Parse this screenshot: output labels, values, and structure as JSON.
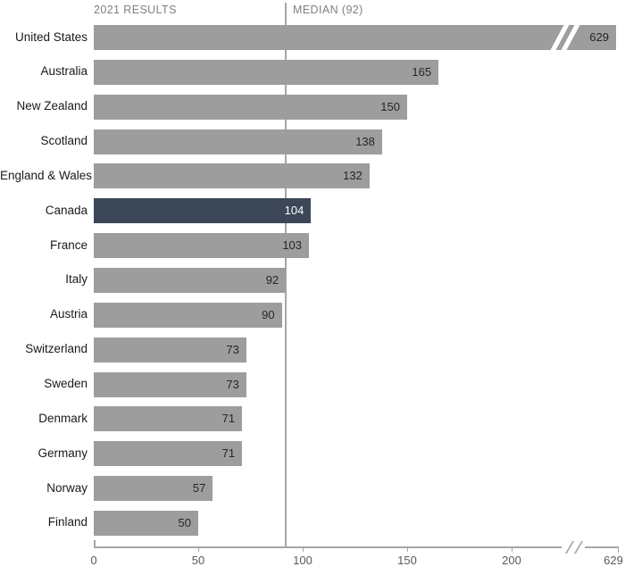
{
  "chart_data": {
    "type": "bar",
    "orientation": "horizontal",
    "series_label": "2021 RESULTS",
    "median": {
      "value": 92,
      "label": "MEDIAN (92)"
    },
    "categories": [
      "United States",
      "Australia",
      "New Zealand",
      "Scotland",
      "England & Wales",
      "Canada",
      "France",
      "Italy",
      "Austria",
      "Switzerland",
      "Sweden",
      "Denmark",
      "Germany",
      "Norway",
      "Finland"
    ],
    "values": [
      629,
      165,
      150,
      138,
      132,
      104,
      103,
      92,
      90,
      73,
      73,
      71,
      71,
      57,
      50
    ],
    "highlight_category": "Canada",
    "axis_ticks": [
      0,
      50,
      100,
      150,
      200
    ],
    "axis_end_tick": 629,
    "axis_break": true,
    "value_labels_inside_bars": true,
    "grid": false,
    "colors": {
      "bar": "#9d9d9d",
      "highlight": "#3b4757",
      "median_line": "#a6a6a6",
      "axis": "#a6a6a6",
      "value_text": "#262626",
      "highlight_value_text": "#ffffff",
      "label_text": "#1a1a1a",
      "header_text": "#808080",
      "tick_text": "#595959",
      "background": "#ffffff"
    }
  }
}
